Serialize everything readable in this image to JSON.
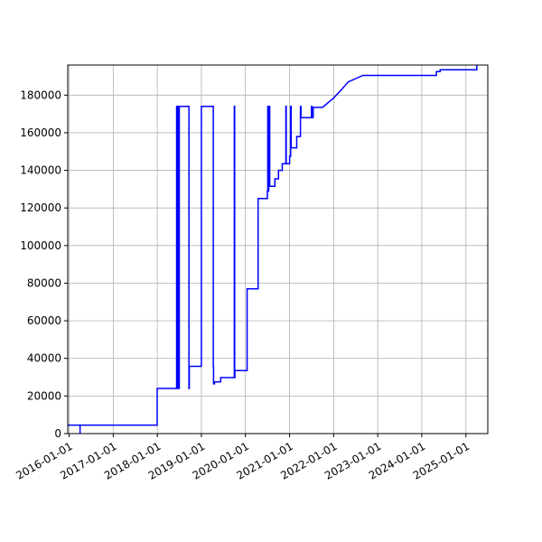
{
  "chart_data": {
    "type": "line",
    "title": "",
    "xlabel": "",
    "ylabel": "",
    "grid": true,
    "line_color": "#0000ff",
    "xlim": [
      "2015-12-21",
      "2025-07-01"
    ],
    "ylim": [
      0,
      196000
    ],
    "x_ticks": [
      "2016-01-01",
      "2017-01-01",
      "2018-01-01",
      "2019-01-01",
      "2020-01-01",
      "2021-01-01",
      "2022-01-01",
      "2023-01-01",
      "2024-01-01",
      "2025-01-01"
    ],
    "y_ticks": [
      0,
      20000,
      40000,
      60000,
      80000,
      100000,
      120000,
      140000,
      160000,
      180000
    ],
    "series": [
      {
        "x": [
          "2015-12-21",
          "2016-04-01",
          "2016-04-01",
          "2016-04-01",
          "2016-04-01",
          "2017-12-31",
          "2017-12-31",
          "2018-06-10",
          "2018-06-10",
          "2018-06-12",
          "2018-06-12",
          "2018-06-16",
          "2018-06-16",
          "2018-06-20",
          "2018-06-20",
          "2018-06-24",
          "2018-06-24",
          "2018-06-28",
          "2018-06-28",
          "2018-07-02",
          "2018-07-02",
          "2018-09-20",
          "2018-09-20",
          "2018-09-23",
          "2018-09-23",
          "2019-01-01",
          "2019-01-01",
          "2019-04-10",
          "2019-04-10",
          "2019-04-12",
          "2019-04-12",
          "2019-04-20",
          "2019-04-20",
          "2019-06-10",
          "2019-06-10",
          "2019-10-01",
          "2019-10-01",
          "2019-10-04",
          "2019-10-04",
          "2019-10-06",
          "2019-10-06",
          "2020-01-15",
          "2020-01-15",
          "2020-04-15",
          "2020-04-15",
          "2020-07-01",
          "2020-07-01",
          "2020-07-04",
          "2020-07-04",
          "2020-07-08",
          "2020-07-08",
          "2020-07-12",
          "2020-07-12",
          "2020-07-20",
          "2020-07-20",
          "2020-09-01",
          "2020-09-01",
          "2020-10-01",
          "2020-10-01",
          "2020-11-01",
          "2020-11-01",
          "2020-12-01",
          "2020-12-01",
          "2020-12-04",
          "2020-12-04",
          "2021-01-01",
          "2021-01-01",
          "2021-01-10",
          "2021-01-10",
          "2021-01-14",
          "2021-01-14",
          "2021-03-01",
          "2021-03-01",
          "2021-04-01",
          "2021-04-01",
          "2021-04-05",
          "2021-04-05",
          "2021-07-01",
          "2021-07-01",
          "2021-07-05",
          "2021-07-05",
          "2021-07-15",
          "2021-07-15",
          "2021-10-01",
          "2021-10-01",
          "2022-01-01",
          "2022-01-01",
          "2022-03-01",
          "2022-03-01",
          "2022-05-01",
          "2022-05-01",
          "2022-09-01",
          "2022-09-01",
          "2024-05-01",
          "2024-05-01",
          "2024-06-01",
          "2024-06-01",
          "2025-04-01",
          "2025-04-01"
        ],
        "y": [
          4500,
          4500,
          0,
          0,
          4500,
          4500,
          24000,
          24000,
          174000,
          174000,
          24000,
          24000,
          174000,
          174000,
          24000,
          24000,
          174000,
          174000,
          24000,
          24000,
          174000,
          174000,
          24000,
          24000,
          35800,
          35800,
          174000,
          174000,
          35800,
          35800,
          26500,
          26500,
          27500,
          27500,
          29800,
          29800,
          174000,
          174000,
          29800,
          29800,
          33500,
          33500,
          77000,
          77000,
          125000,
          125000,
          129000,
          129000,
          174000,
          174000,
          129000,
          129000,
          174000,
          174000,
          131500,
          131500,
          135500,
          135500,
          140000,
          140000,
          143500,
          143500,
          174000,
          174000,
          143500,
          143500,
          147500,
          147500,
          174000,
          174000,
          152000,
          152000,
          158000,
          158000,
          174000,
          174000,
          168000,
          168000,
          174000,
          174000,
          168000,
          168000,
          173500,
          173500,
          173500,
          178500,
          178500,
          182500,
          182500,
          187000,
          187000,
          190500,
          190500,
          190500,
          192500,
          192500,
          193500,
          193500,
          196000
        ]
      }
    ]
  }
}
